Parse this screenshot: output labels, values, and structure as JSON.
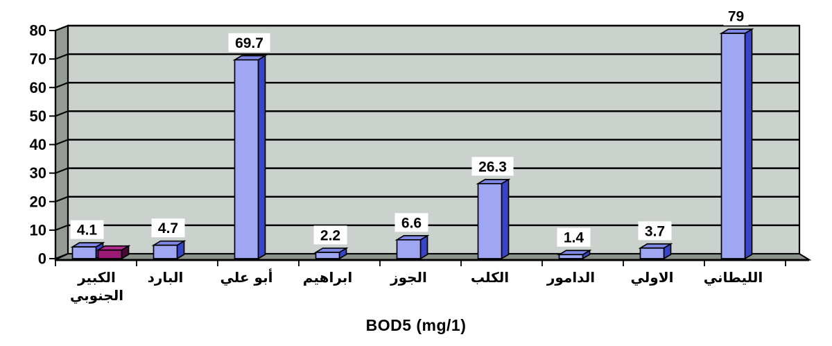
{
  "chart_data": {
    "type": "bar",
    "style": "3d-column",
    "title": "BOD5 (mg/1)",
    "categories": [
      "الكبير الجنوبي",
      "البارد",
      "أبو علي",
      "ابراهيم",
      "الجوز",
      "الكلب",
      "الدامور",
      "الاولي",
      "الليطاني"
    ],
    "category_lines": [
      [
        "الكبير",
        "الجنوبي"
      ],
      [
        "البارد"
      ],
      [
        "أبو علي"
      ],
      [
        "ابراهيم"
      ],
      [
        "الجوز"
      ],
      [
        "الكلب"
      ],
      [
        "الدامور"
      ],
      [
        "الاولي"
      ],
      [
        "الليطاني"
      ]
    ],
    "values": [
      4.1,
      4.7,
      69.7,
      2.2,
      6.6,
      26.3,
      1.4,
      3.7,
      79
    ],
    "value_labels": [
      "4.1",
      "4.7",
      "69.7",
      "2.2",
      "6.6",
      "26.3",
      "1.4",
      "3.7",
      "79"
    ],
    "secondary_bar": {
      "category_index": 0,
      "estimated_value": 3,
      "labeled": false,
      "note": "unlabeled magenta bar beside the blue bar of the first category"
    },
    "xlabel": "",
    "ylabel": "",
    "ylim": [
      0,
      80
    ],
    "yticks": [
      0,
      10,
      20,
      30,
      40,
      50,
      60,
      70,
      80
    ],
    "grid": true,
    "legend": "none",
    "colors": {
      "bar_front": "#9FA7F2",
      "bar_top": "#7E88E4",
      "bar_side": "#3945C8",
      "magenta_front": "#9B1A74",
      "magenta_top": "#AE2C8C",
      "magenta_side": "#4A0838",
      "back_wall": "#CBD2CD",
      "side_wall": "#949B95",
      "floor": "#8A908A",
      "gridline": "#000000",
      "label_bg": "#FFFFFF",
      "text": "#000000"
    }
  }
}
